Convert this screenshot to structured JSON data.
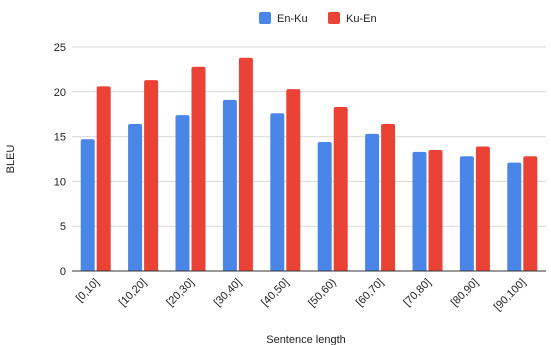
{
  "chart_data": {
    "type": "bar",
    "xlabel": "Sentence length",
    "ylabel": "BLEU",
    "ylim": [
      0,
      25
    ],
    "yticks": [
      0,
      5,
      10,
      15,
      20,
      25
    ],
    "grid": true,
    "legend_position": "top-center",
    "categories": [
      "[0,10]",
      "[10,20]",
      "[20,30]",
      "[30,40]",
      "[40,50]",
      "[50,60)",
      "[60,70]",
      "[70,80]",
      "[80,90]",
      "[90,100]"
    ],
    "series": [
      {
        "name": "En-Ku",
        "color": "#4a86e8",
        "values": [
          14.7,
          16.4,
          17.4,
          19.1,
          17.6,
          14.4,
          15.3,
          13.3,
          12.8,
          12.1
        ]
      },
      {
        "name": "Ku-En",
        "color": "#ea4335",
        "values": [
          20.6,
          21.3,
          22.8,
          23.8,
          20.3,
          18.3,
          16.4,
          13.5,
          13.9,
          12.8
        ]
      }
    ]
  }
}
